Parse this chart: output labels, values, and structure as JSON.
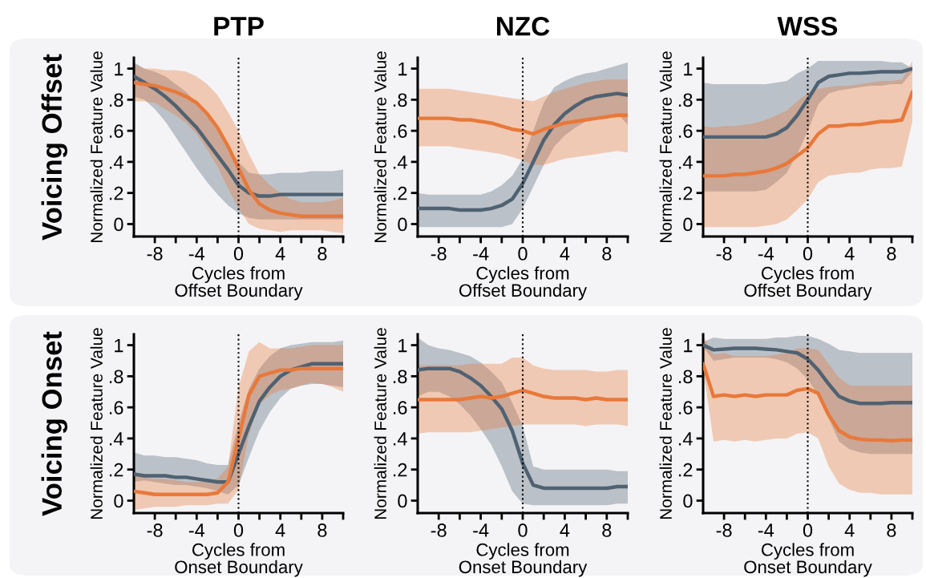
{
  "chart_data": [
    {
      "type": "line",
      "title": "PTP",
      "annotations": [
        "Voicing Offset"
      ],
      "xlabel": "Cycles from\nOffset Boundary",
      "ylabel": "Normalized Feature Value",
      "x": [
        -10,
        -9,
        -8,
        -7,
        -6,
        -5,
        -4,
        -3,
        -2,
        -1,
        0,
        1,
        2,
        3,
        4,
        5,
        6,
        7,
        8,
        9,
        10
      ],
      "xlim": [
        -10,
        10
      ],
      "ylim": [
        -0.08,
        1.07
      ],
      "xticks": [
        -8,
        {
          "value": -6,
          "label": null
        },
        -4,
        {
          "value": -2,
          "label": null
        },
        0,
        {
          "value": 2,
          "label": null
        },
        4,
        {
          "value": 6,
          "label": null
        },
        8,
        {
          "value": 10,
          "label": null
        }
      ],
      "yticks": [
        0,
        {
          "value": 0.2,
          "label": ".2"
        },
        {
          "value": 0.4,
          "label": ".4"
        },
        {
          "value": 0.6,
          "label": ".6"
        },
        {
          "value": 0.8,
          "label": ".8"
        },
        1
      ],
      "ref_lines": [
        {
          "axis": "x",
          "value": 0,
          "label": null,
          "color": "#000000",
          "line_style": "dotted"
        }
      ],
      "series": [
        {
          "color": "#4f6272",
          "values": [
            0.95,
            0.91,
            0.87,
            0.82,
            0.76,
            0.69,
            0.62,
            0.53,
            0.44,
            0.35,
            0.25,
            0.2,
            0.18,
            0.18,
            0.19,
            0.19,
            0.19,
            0.19,
            0.19,
            0.19,
            0.19
          ],
          "lower": [
            0.82,
            0.8,
            0.74,
            0.66,
            0.56,
            0.46,
            0.36,
            0.27,
            0.19,
            0.12,
            0.07,
            0.04,
            0.03,
            0.03,
            0.03,
            0.03,
            0.03,
            0.03,
            0.03,
            0.03,
            0.03
          ],
          "upper": [
            1.04,
            1.0,
            0.98,
            0.95,
            0.9,
            0.85,
            0.78,
            0.7,
            0.6,
            0.5,
            0.4,
            0.33,
            0.32,
            0.32,
            0.33,
            0.33,
            0.33,
            0.34,
            0.34,
            0.34,
            0.35
          ]
        },
        {
          "color": "#e8793a",
          "values": [
            0.91,
            0.9,
            0.89,
            0.87,
            0.85,
            0.82,
            0.78,
            0.71,
            0.62,
            0.5,
            0.36,
            0.22,
            0.13,
            0.09,
            0.07,
            0.06,
            0.05,
            0.05,
            0.05,
            0.05,
            0.05
          ],
          "lower": [
            0.79,
            0.79,
            0.78,
            0.74,
            0.7,
            0.65,
            0.58,
            0.48,
            0.37,
            0.23,
            0.1,
            0.0,
            -0.03,
            -0.04,
            -0.05,
            -0.04,
            -0.04,
            -0.04,
            -0.04,
            -0.05,
            -0.06
          ],
          "upper": [
            1.03,
            1.0,
            1.0,
            0.99,
            0.99,
            0.98,
            0.95,
            0.9,
            0.83,
            0.72,
            0.6,
            0.45,
            0.32,
            0.25,
            0.2,
            0.16,
            0.14,
            0.14,
            0.14,
            0.15,
            0.17
          ]
        }
      ]
    },
    {
      "type": "line",
      "title": "NZC",
      "xlabel": "Cycles from\nOffset Boundary",
      "ylabel": "Normalized Feature Value",
      "x": [
        -10,
        -9,
        -8,
        -7,
        -6,
        -5,
        -4,
        -3,
        -2,
        -1,
        0,
        1,
        2,
        3,
        4,
        5,
        6,
        7,
        8,
        9,
        10
      ],
      "xlim": [
        -10,
        10
      ],
      "ylim": [
        -0.08,
        1.07
      ],
      "xticks": [
        -8,
        {
          "value": -6,
          "label": null
        },
        -4,
        {
          "value": -2,
          "label": null
        },
        0,
        {
          "value": 2,
          "label": null
        },
        4,
        {
          "value": 6,
          "label": null
        },
        8,
        {
          "value": 10,
          "label": null
        }
      ],
      "yticks": [
        0,
        {
          "value": 0.2,
          "label": ".2"
        },
        {
          "value": 0.4,
          "label": ".4"
        },
        {
          "value": 0.6,
          "label": ".6"
        },
        {
          "value": 0.8,
          "label": ".8"
        },
        1
      ],
      "ref_lines": [
        {
          "axis": "x",
          "value": 0,
          "label": null,
          "color": "#000000",
          "line_style": "dotted"
        }
      ],
      "series": [
        {
          "color": "#4f6272",
          "values": [
            0.1,
            0.1,
            0.1,
            0.1,
            0.09,
            0.09,
            0.09,
            0.1,
            0.12,
            0.16,
            0.26,
            0.4,
            0.54,
            0.64,
            0.71,
            0.76,
            0.8,
            0.82,
            0.83,
            0.84,
            0.83
          ],
          "lower": [
            -0.02,
            -0.02,
            -0.02,
            -0.02,
            -0.02,
            -0.02,
            -0.02,
            -0.02,
            -0.02,
            0.0,
            0.1,
            0.24,
            0.38,
            0.5,
            0.57,
            0.62,
            0.66,
            0.69,
            0.7,
            0.71,
            0.64
          ],
          "upper": [
            0.2,
            0.19,
            0.19,
            0.19,
            0.19,
            0.19,
            0.19,
            0.21,
            0.25,
            0.31,
            0.42,
            0.6,
            0.78,
            0.88,
            0.92,
            0.95,
            0.97,
            0.98,
            1.0,
            1.02,
            1.04
          ]
        },
        {
          "color": "#e8793a",
          "values": [
            0.68,
            0.68,
            0.68,
            0.68,
            0.67,
            0.67,
            0.66,
            0.65,
            0.63,
            0.61,
            0.6,
            0.58,
            0.61,
            0.63,
            0.65,
            0.66,
            0.67,
            0.68,
            0.69,
            0.7,
            0.7
          ],
          "lower": [
            0.5,
            0.5,
            0.5,
            0.5,
            0.49,
            0.48,
            0.47,
            0.46,
            0.45,
            0.43,
            0.41,
            0.38,
            0.38,
            0.4,
            0.42,
            0.43,
            0.44,
            0.45,
            0.46,
            0.47,
            0.46
          ],
          "upper": [
            0.87,
            0.87,
            0.87,
            0.87,
            0.86,
            0.85,
            0.84,
            0.83,
            0.82,
            0.81,
            0.8,
            0.79,
            0.82,
            0.85,
            0.87,
            0.89,
            0.91,
            0.92,
            0.93,
            0.93,
            0.93
          ]
        }
      ]
    },
    {
      "type": "line",
      "title": "WSS",
      "xlabel": "Cycles from\nOffset Boundary",
      "ylabel": "Normalized Feature Value",
      "x": [
        -10,
        -9,
        -8,
        -7,
        -6,
        -5,
        -4,
        -3,
        -2,
        -1,
        0,
        1,
        2,
        3,
        4,
        5,
        6,
        7,
        8,
        9,
        10
      ],
      "xlim": [
        -10,
        10
      ],
      "ylim": [
        -0.08,
        1.07
      ],
      "xticks": [
        -8,
        {
          "value": -6,
          "label": null
        },
        -4,
        {
          "value": -2,
          "label": null
        },
        0,
        {
          "value": 2,
          "label": null
        },
        4,
        {
          "value": 6,
          "label": null
        },
        8,
        {
          "value": 10,
          "label": null
        }
      ],
      "yticks": [
        0,
        {
          "value": 0.2,
          "label": ".2"
        },
        {
          "value": 0.4,
          "label": ".4"
        },
        {
          "value": 0.6,
          "label": ".6"
        },
        {
          "value": 0.8,
          "label": ".8"
        },
        1
      ],
      "ref_lines": [
        {
          "axis": "x",
          "value": 0,
          "label": null,
          "color": "#000000",
          "line_style": "dotted"
        }
      ],
      "series": [
        {
          "color": "#4f6272",
          "values": [
            0.56,
            0.56,
            0.56,
            0.56,
            0.56,
            0.56,
            0.56,
            0.58,
            0.62,
            0.7,
            0.8,
            0.91,
            0.95,
            0.96,
            0.97,
            0.97,
            0.975,
            0.98,
            0.98,
            0.98,
            1.0
          ],
          "lower": [
            0.21,
            0.21,
            0.21,
            0.21,
            0.21,
            0.21,
            0.22,
            0.27,
            0.33,
            0.45,
            0.6,
            0.77,
            0.84,
            0.86,
            0.87,
            0.88,
            0.89,
            0.89,
            0.9,
            0.9,
            0.98
          ],
          "upper": [
            0.91,
            0.9,
            0.9,
            0.9,
            0.9,
            0.9,
            0.9,
            0.91,
            0.92,
            0.97,
            1.0,
            1.05,
            1.05,
            1.05,
            1.05,
            1.05,
            1.05,
            1.05,
            1.04,
            1.04,
            1.0
          ]
        },
        {
          "color": "#e8793a",
          "values": [
            0.31,
            0.31,
            0.31,
            0.32,
            0.32,
            0.33,
            0.34,
            0.36,
            0.39,
            0.44,
            0.49,
            0.58,
            0.63,
            0.63,
            0.64,
            0.64,
            0.65,
            0.66,
            0.66,
            0.67,
            0.85
          ],
          "lower": [
            -0.02,
            -0.02,
            -0.02,
            -0.02,
            -0.02,
            -0.02,
            -0.01,
            0.0,
            0.03,
            0.09,
            0.16,
            0.27,
            0.31,
            0.32,
            0.33,
            0.33,
            0.35,
            0.36,
            0.36,
            0.37,
            0.66
          ],
          "upper": [
            0.63,
            0.62,
            0.63,
            0.63,
            0.64,
            0.65,
            0.67,
            0.7,
            0.73,
            0.79,
            0.84,
            0.87,
            0.88,
            0.89,
            0.89,
            0.9,
            0.91,
            0.92,
            0.92,
            0.93,
            1.05
          ]
        }
      ]
    },
    {
      "type": "line",
      "annotations": [
        "Voicing Onset"
      ],
      "xlabel": "Cycles from\nOnset Boundary",
      "ylabel": "Normalized Feature Value",
      "x": [
        -10,
        -9,
        -8,
        -7,
        -6,
        -5,
        -4,
        -3,
        -2,
        -1,
        0,
        1,
        2,
        3,
        4,
        5,
        6,
        7,
        8,
        9,
        10
      ],
      "xlim": [
        -10,
        10
      ],
      "ylim": [
        -0.08,
        1.07
      ],
      "xticks": [
        -8,
        {
          "value": -6,
          "label": null
        },
        -4,
        {
          "value": -2,
          "label": null
        },
        0,
        {
          "value": 2,
          "label": null
        },
        4,
        {
          "value": 6,
          "label": null
        },
        8,
        {
          "value": 10,
          "label": null
        }
      ],
      "yticks": [
        0,
        {
          "value": 0.2,
          "label": ".2"
        },
        {
          "value": 0.4,
          "label": ".4"
        },
        {
          "value": 0.6,
          "label": ".6"
        },
        {
          "value": 0.8,
          "label": ".8"
        },
        1
      ],
      "ref_lines": [
        {
          "axis": "x",
          "value": 0,
          "label": null,
          "color": "#000000",
          "line_style": "dotted"
        }
      ],
      "series": [
        {
          "color": "#4f6272",
          "values": [
            0.17,
            0.16,
            0.16,
            0.16,
            0.15,
            0.15,
            0.14,
            0.13,
            0.12,
            0.12,
            0.3,
            0.48,
            0.64,
            0.73,
            0.8,
            0.84,
            0.86,
            0.88,
            0.88,
            0.88,
            0.88
          ],
          "lower": [
            0.12,
            0.13,
            0.12,
            0.11,
            0.1,
            0.1,
            0.09,
            0.08,
            0.06,
            0.04,
            0.1,
            0.28,
            0.45,
            0.57,
            0.66,
            0.72,
            0.74,
            0.75,
            0.75,
            0.74,
            0.73
          ],
          "upper": [
            0.31,
            0.29,
            0.29,
            0.28,
            0.28,
            0.27,
            0.26,
            0.24,
            0.23,
            0.23,
            0.5,
            0.72,
            0.85,
            0.93,
            0.98,
            1.0,
            1.01,
            1.02,
            1.02,
            1.02,
            1.03
          ]
        },
        {
          "color": "#e8793a",
          "values": [
            0.06,
            0.05,
            0.04,
            0.04,
            0.04,
            0.04,
            0.04,
            0.04,
            0.05,
            0.12,
            0.4,
            0.68,
            0.8,
            0.82,
            0.84,
            0.84,
            0.85,
            0.85,
            0.85,
            0.85,
            0.85
          ],
          "lower": [
            -0.06,
            -0.05,
            -0.04,
            -0.04,
            -0.04,
            -0.03,
            -0.03,
            -0.03,
            -0.02,
            -0.02,
            0.07,
            0.43,
            0.62,
            0.68,
            0.71,
            0.72,
            0.74,
            0.76,
            0.75,
            0.73,
            0.7
          ],
          "upper": [
            0.19,
            0.15,
            0.14,
            0.14,
            0.13,
            0.12,
            0.12,
            0.13,
            0.14,
            0.22,
            0.73,
            0.96,
            1.02,
            0.98,
            0.98,
            0.98,
            0.99,
            1.0,
            1.0,
            1.0,
            1.0
          ]
        }
      ]
    },
    {
      "type": "line",
      "xlabel": "Cycles from\nOnset Boundary",
      "ylabel": "Normalized Feature Value",
      "x": [
        -10,
        -9,
        -8,
        -7,
        -6,
        -5,
        -4,
        -3,
        -2,
        -1,
        0,
        1,
        2,
        3,
        4,
        5,
        6,
        7,
        8,
        9,
        10
      ],
      "xlim": [
        -10,
        10
      ],
      "ylim": [
        -0.08,
        1.07
      ],
      "xticks": [
        -8,
        {
          "value": -6,
          "label": null
        },
        -4,
        {
          "value": -2,
          "label": null
        },
        0,
        {
          "value": 2,
          "label": null
        },
        4,
        {
          "value": 6,
          "label": null
        },
        8,
        {
          "value": 10,
          "label": null
        }
      ],
      "yticks": [
        0,
        {
          "value": 0.2,
          "label": ".2"
        },
        {
          "value": 0.4,
          "label": ".4"
        },
        {
          "value": 0.6,
          "label": ".6"
        },
        {
          "value": 0.8,
          "label": ".8"
        },
        1
      ],
      "ref_lines": [
        {
          "axis": "x",
          "value": 0,
          "label": null,
          "color": "#000000",
          "line_style": "dotted"
        }
      ],
      "series": [
        {
          "color": "#4f6272",
          "values": [
            0.84,
            0.85,
            0.85,
            0.85,
            0.83,
            0.79,
            0.74,
            0.67,
            0.59,
            0.45,
            0.24,
            0.1,
            0.08,
            0.08,
            0.08,
            0.08,
            0.08,
            0.08,
            0.08,
            0.09,
            0.09
          ],
          "lower": [
            0.67,
            0.7,
            0.7,
            0.67,
            0.62,
            0.55,
            0.46,
            0.36,
            0.22,
            0.06,
            -0.02,
            -0.03,
            -0.03,
            -0.03,
            -0.03,
            -0.03,
            -0.03,
            -0.03,
            -0.03,
            -0.02,
            -0.02
          ],
          "upper": [
            1.05,
            1.0,
            0.98,
            0.97,
            0.95,
            0.93,
            0.89,
            0.83,
            0.76,
            0.63,
            0.48,
            0.22,
            0.2,
            0.2,
            0.2,
            0.2,
            0.2,
            0.2,
            0.2,
            0.19,
            0.19
          ]
        },
        {
          "color": "#e8793a",
          "values": [
            0.65,
            0.65,
            0.65,
            0.65,
            0.65,
            0.66,
            0.67,
            0.66,
            0.67,
            0.69,
            0.71,
            0.69,
            0.67,
            0.66,
            0.66,
            0.66,
            0.65,
            0.66,
            0.65,
            0.65,
            0.65
          ],
          "lower": [
            0.43,
            0.44,
            0.44,
            0.44,
            0.44,
            0.44,
            0.45,
            0.46,
            0.47,
            0.48,
            0.49,
            0.49,
            0.49,
            0.49,
            0.49,
            0.49,
            0.48,
            0.49,
            0.49,
            0.49,
            0.48
          ],
          "upper": [
            0.87,
            0.87,
            0.87,
            0.87,
            0.87,
            0.88,
            0.88,
            0.88,
            0.88,
            0.92,
            0.92,
            0.87,
            0.85,
            0.84,
            0.84,
            0.84,
            0.84,
            0.83,
            0.83,
            0.84,
            0.84
          ]
        }
      ]
    },
    {
      "type": "line",
      "xlabel": "Cycles from\nOnset Boundary",
      "ylabel": "Normalized Feature Value",
      "x": [
        -10,
        -9,
        -8,
        -7,
        -6,
        -5,
        -4,
        -3,
        -2,
        -1,
        0,
        1,
        2,
        3,
        4,
        5,
        6,
        7,
        8,
        9,
        10
      ],
      "xlim": [
        -10,
        10
      ],
      "ylim": [
        -0.08,
        1.07
      ],
      "xticks": [
        -8,
        {
          "value": -6,
          "label": null
        },
        -4,
        {
          "value": -2,
          "label": null
        },
        0,
        {
          "value": 2,
          "label": null
        },
        4,
        {
          "value": 6,
          "label": null
        },
        8,
        {
          "value": 10,
          "label": null
        }
      ],
      "yticks": [
        0,
        {
          "value": 0.2,
          "label": ".2"
        },
        {
          "value": 0.4,
          "label": ".4"
        },
        {
          "value": 0.6,
          "label": ".6"
        },
        {
          "value": 0.8,
          "label": ".8"
        },
        1
      ],
      "ref_lines": [
        {
          "axis": "x",
          "value": 0,
          "label": null,
          "color": "#000000",
          "line_style": "dotted"
        }
      ],
      "series": [
        {
          "color": "#4f6272",
          "values": [
            1.0,
            0.97,
            0.975,
            0.98,
            0.98,
            0.98,
            0.975,
            0.97,
            0.96,
            0.95,
            0.91,
            0.84,
            0.75,
            0.67,
            0.64,
            0.625,
            0.625,
            0.625,
            0.63,
            0.63,
            0.63
          ],
          "lower": [
            0.99,
            0.9,
            0.91,
            0.92,
            0.92,
            0.92,
            0.92,
            0.91,
            0.89,
            0.85,
            0.78,
            0.68,
            0.53,
            0.38,
            0.33,
            0.31,
            0.3,
            0.3,
            0.3,
            0.3,
            0.3
          ],
          "upper": [
            1.02,
            1.05,
            1.04,
            1.04,
            1.04,
            1.04,
            1.04,
            1.05,
            1.05,
            1.06,
            1.06,
            1.04,
            1.01,
            0.97,
            0.96,
            0.95,
            0.95,
            0.95,
            0.95,
            0.95,
            0.95
          ]
        },
        {
          "color": "#e8793a",
          "values": [
            0.88,
            0.67,
            0.68,
            0.67,
            0.68,
            0.67,
            0.68,
            0.68,
            0.68,
            0.71,
            0.72,
            0.69,
            0.55,
            0.45,
            0.41,
            0.395,
            0.39,
            0.39,
            0.385,
            0.39,
            0.39
          ],
          "lower": [
            0.85,
            0.38,
            0.39,
            0.38,
            0.39,
            0.38,
            0.39,
            0.4,
            0.4,
            0.43,
            0.44,
            0.4,
            0.22,
            0.11,
            0.07,
            0.05,
            0.05,
            0.04,
            0.04,
            0.04,
            0.04
          ],
          "upper": [
            1.06,
            0.94,
            0.95,
            0.93,
            0.93,
            0.93,
            0.93,
            0.94,
            0.95,
            0.98,
            0.98,
            0.97,
            0.88,
            0.79,
            0.74,
            0.74,
            0.74,
            0.74,
            0.74,
            0.74,
            0.74
          ]
        }
      ]
    }
  ]
}
